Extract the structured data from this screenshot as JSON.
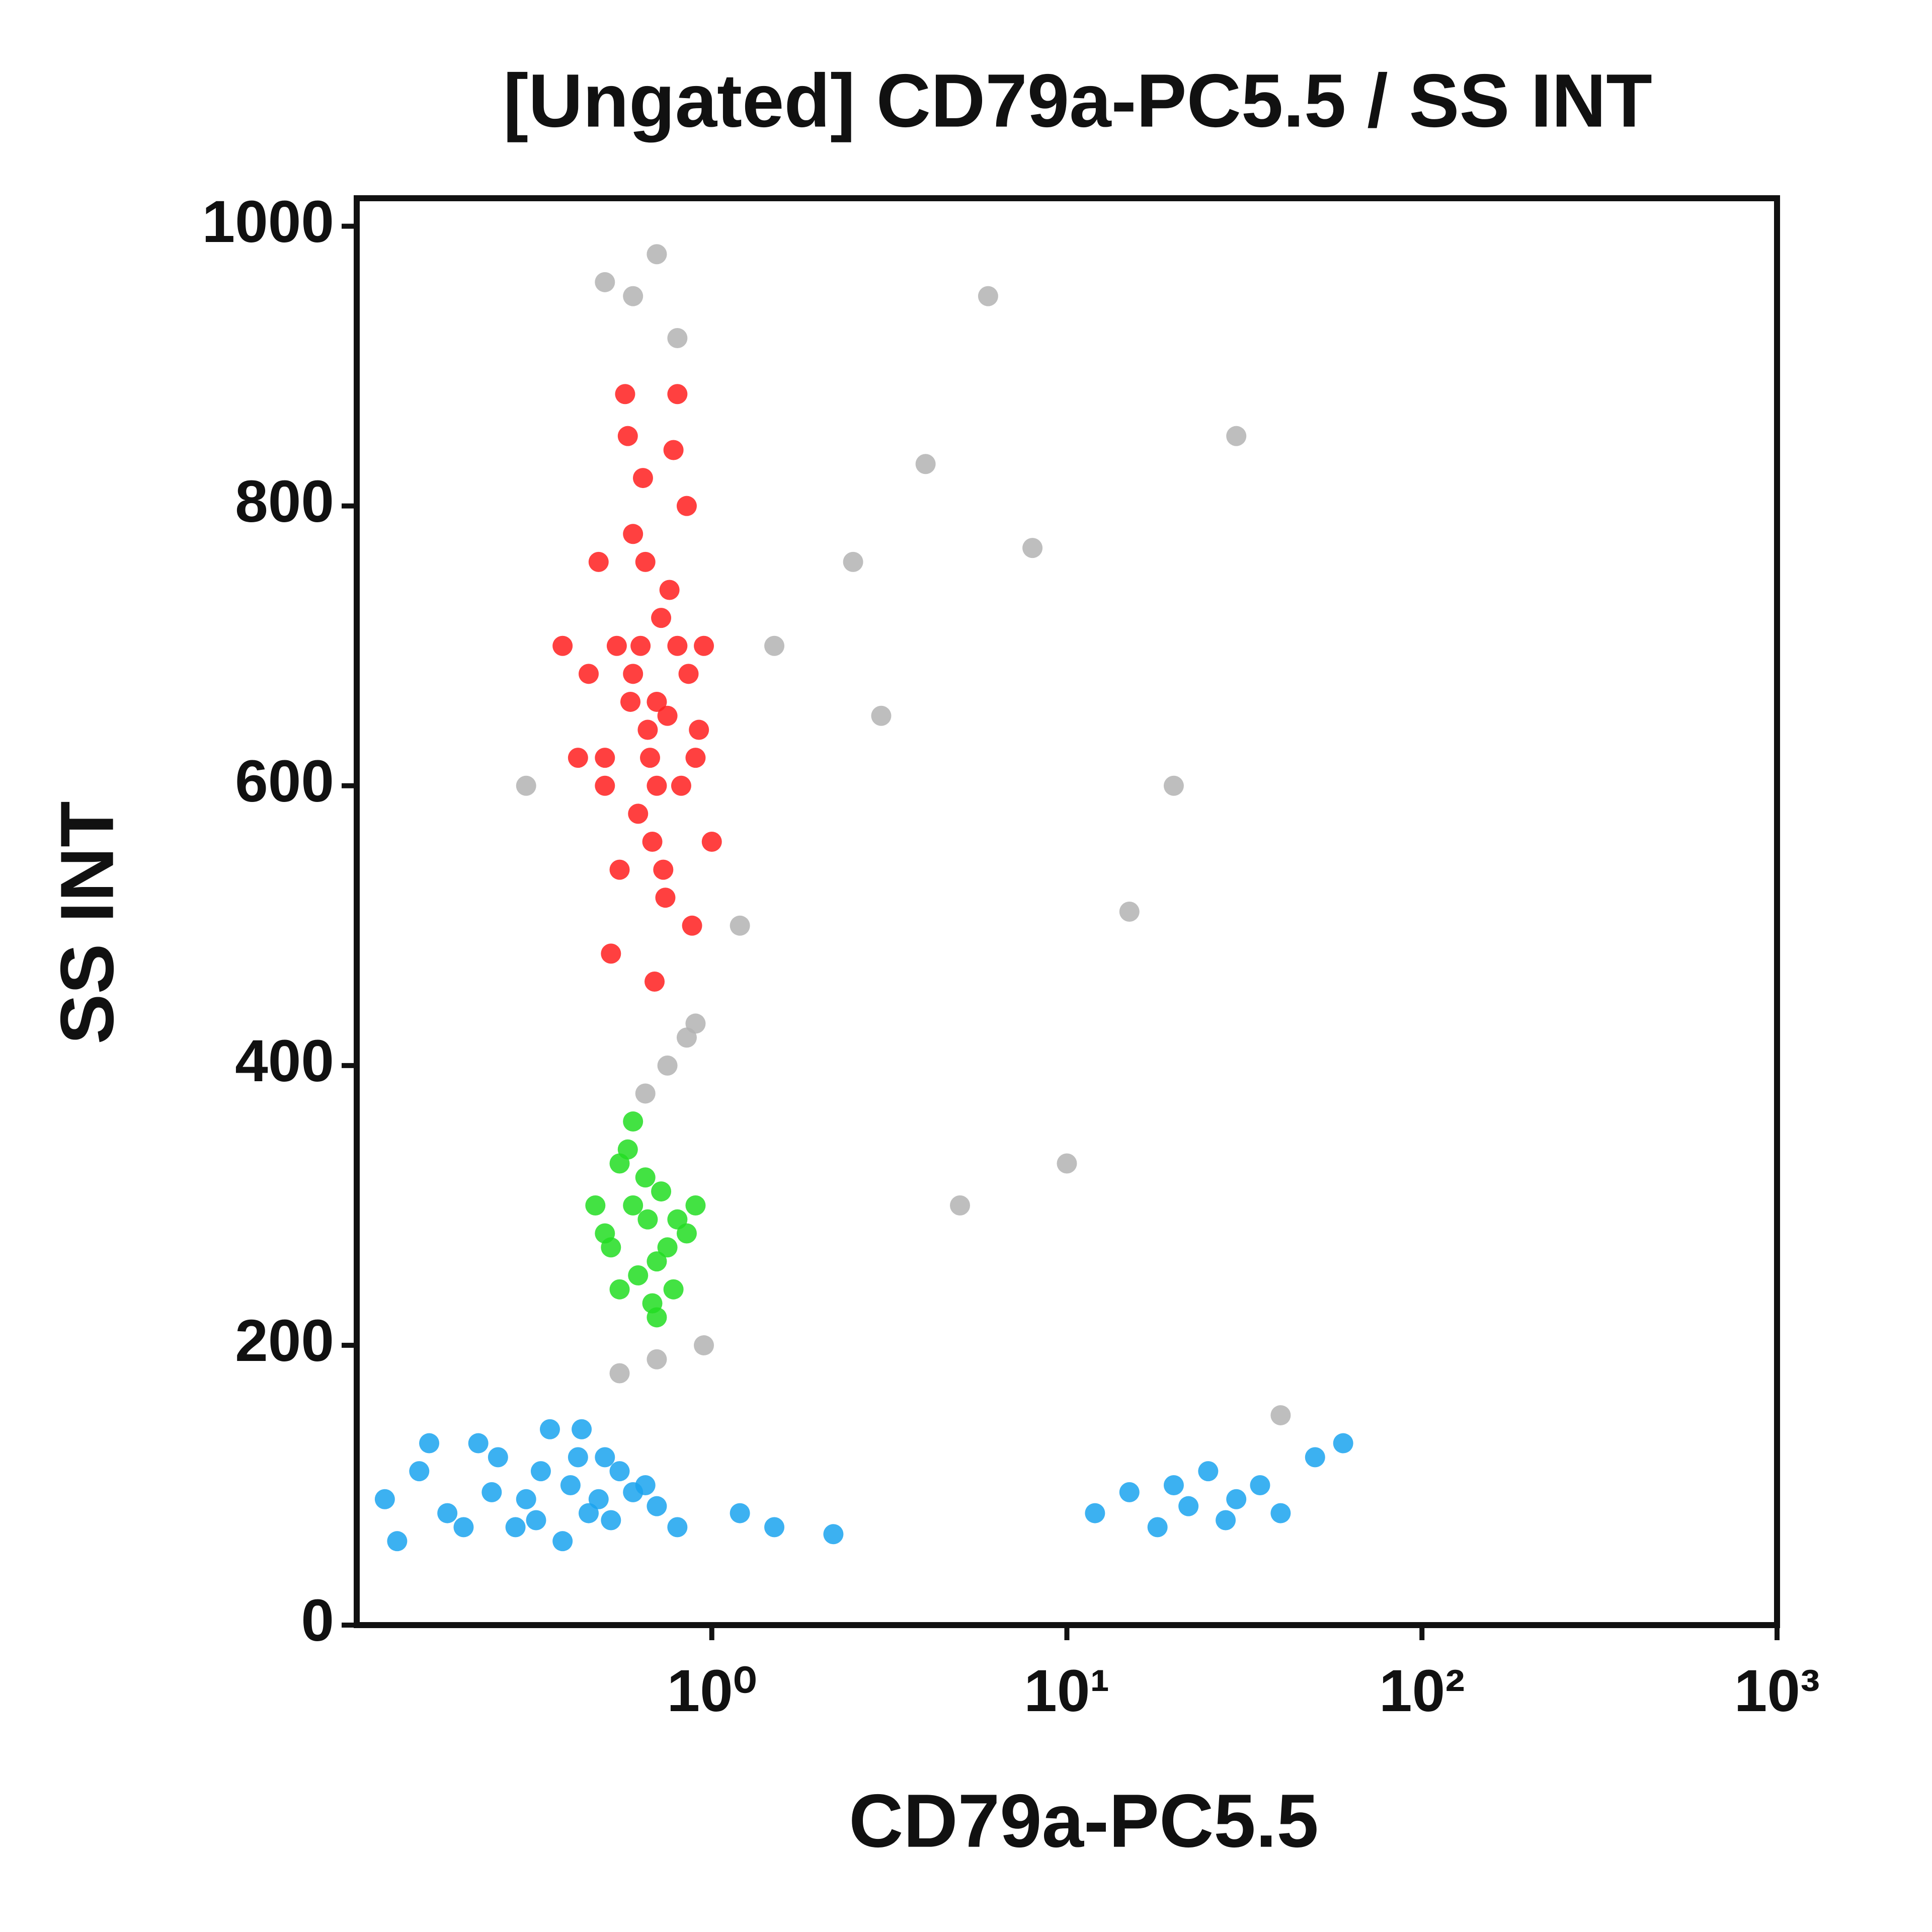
{
  "chart_data": {
    "type": "scatter",
    "title": "[Ungated] CD79a-PC5.5 / SS INT",
    "x_label": "CD79a-PC5.5",
    "y_label": "SS INT",
    "xscale": "log",
    "xlim": [
      0.1,
      1000
    ],
    "xticks": [
      {
        "value": 1,
        "label": "10⁰"
      },
      {
        "value": 10,
        "label": "10¹"
      },
      {
        "value": 100,
        "label": "10²"
      },
      {
        "value": 1000,
        "label": "10³"
      }
    ],
    "ylim": [
      0,
      1020
    ],
    "yticks": [
      0,
      200,
      400,
      600,
      800,
      1000
    ],
    "series": [
      {
        "color": "#b3b3b3",
        "x": [
          0.6,
          0.7,
          0.8,
          0.5,
          0.9,
          0.3,
          1.5,
          2.5,
          4,
          6,
          8,
          10,
          20,
          15,
          30,
          0.75,
          0.65,
          0.85,
          1.2,
          3,
          5,
          0.55,
          0.7,
          40,
          0.95
        ],
        "values": [
          950,
          980,
          920,
          960,
          430,
          600,
          700,
          760,
          830,
          950,
          770,
          330,
          600,
          510,
          850,
          400,
          380,
          420,
          500,
          650,
          300,
          180,
          190,
          150,
          200
        ]
      },
      {
        "color": "#ff1f1f",
        "x": [
          0.5,
          0.6,
          0.7,
          0.8,
          0.55,
          0.65,
          0.75,
          0.9,
          0.45,
          0.62,
          0.72,
          0.85,
          0.52,
          0.58,
          0.68,
          0.78,
          0.95,
          0.48,
          0.66,
          0.74,
          0.82,
          0.57,
          0.63,
          0.7,
          0.88,
          0.42,
          0.6,
          0.76,
          1.0,
          0.54,
          0.69,
          0.8,
          0.5,
          0.64,
          0.73,
          0.86,
          0.38,
          0.67,
          0.59,
          0.92
        ],
        "values": [
          620,
          680,
          600,
          700,
          540,
          760,
          650,
          620,
          680,
          580,
          720,
          800,
          480,
          850,
          560,
          840,
          700,
          760,
          640,
          520,
          600,
          880,
          700,
          660,
          500,
          620,
          780,
          740,
          560,
          700,
          460,
          880,
          600,
          820,
          540,
          680,
          700,
          620,
          660,
          640
        ]
      },
      {
        "color": "#22dd22",
        "x": [
          0.5,
          0.6,
          0.7,
          0.8,
          0.55,
          0.65,
          0.75,
          0.58,
          0.68,
          0.85,
          0.47,
          0.62,
          0.72,
          0.52,
          0.78,
          0.66,
          0.6,
          0.7,
          0.55,
          0.9
        ],
        "values": [
          280,
          300,
          260,
          290,
          240,
          320,
          270,
          340,
          230,
          280,
          300,
          250,
          310,
          270,
          240,
          290,
          360,
          220,
          330,
          300
        ]
      },
      {
        "color": "#1aa3ee",
        "x": [
          0.12,
          0.15,
          0.2,
          0.25,
          0.3,
          0.35,
          0.4,
          0.45,
          0.5,
          0.6,
          0.7,
          0.8,
          0.13,
          0.18,
          0.22,
          0.28,
          0.33,
          0.38,
          0.43,
          0.48,
          0.55,
          0.65,
          0.16,
          0.24,
          0.32,
          0.42,
          0.52,
          1.2,
          1.5,
          2.2,
          12,
          15,
          18,
          20,
          22,
          25,
          28,
          30,
          35,
          40,
          50,
          60
        ],
        "values": [
          90,
          110,
          70,
          120,
          90,
          140,
          100,
          80,
          120,
          95,
          85,
          70,
          60,
          80,
          130,
          70,
          110,
          60,
          140,
          90,
          110,
          100,
          130,
          95,
          75,
          120,
          75,
          80,
          70,
          65,
          80,
          95,
          70,
          100,
          85,
          110,
          75,
          90,
          100,
          80,
          120,
          130
        ]
      }
    ]
  }
}
